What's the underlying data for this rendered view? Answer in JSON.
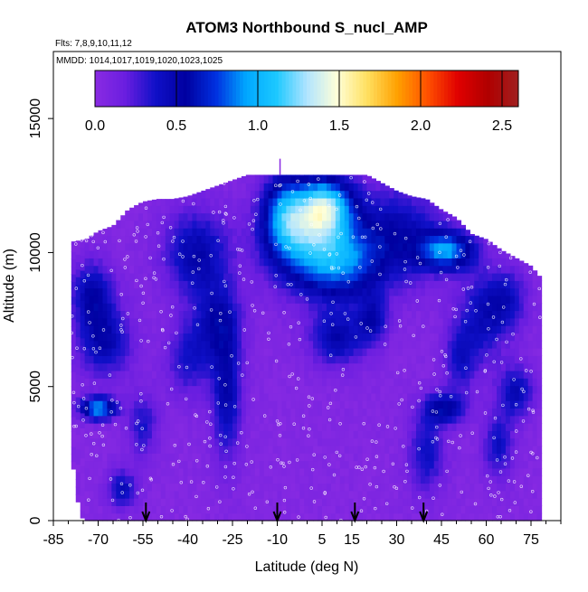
{
  "chart_data": {
    "type": "heatmap",
    "title": "ATOM3 Northbound S_nucl_AMP",
    "note_flights": "Flts: 7,8,9,10,11,12",
    "note_dates": "MMDD: 1014,1017,1019,1020,1023,1025",
    "xlabel": "Latitude (deg N)",
    "ylabel": "Altitude (m)",
    "xlim": [
      -85,
      85
    ],
    "ylim": [
      0,
      17500
    ],
    "x_ticks": [
      -85,
      -70,
      -55,
      -40,
      -25,
      -10,
      5,
      15,
      30,
      45,
      60,
      75
    ],
    "x_tick_labels": [
      "-85",
      "-70",
      "-55",
      "-40",
      "-25",
      "-10",
      "5",
      "15",
      "30",
      "45",
      "60",
      "75"
    ],
    "y_ticks": [
      0,
      5000,
      10000,
      15000
    ],
    "y_tick_labels": [
      "0",
      "5000",
      "10000",
      "15000"
    ],
    "colorbar": {
      "range": [
        0,
        2.6
      ],
      "ticks": [
        0.0,
        0.5,
        1.0,
        1.5,
        2.0,
        2.5
      ],
      "tick_labels": [
        "0.0",
        "0.5",
        "1.0",
        "1.5",
        "2.0",
        "2.5"
      ],
      "colors": [
        "#8a2be2",
        "#6a1ee0",
        "#1010c8",
        "#0000a0",
        "#0030e0",
        "#00a8ff",
        "#1cc8ff",
        "#b0e4ff",
        "#ffffd8",
        "#ffe060",
        "#ffa000",
        "#ff5000",
        "#e00000",
        "#b00000",
        "#a02020"
      ]
    },
    "arrow_latitudes": [
      -54,
      -10,
      16,
      39
    ],
    "field": {
      "background_value": 0.05,
      "profile_tops": [
        [
          -79,
          10400
        ],
        [
          -74,
          10500
        ],
        [
          -70,
          10800
        ],
        [
          -65,
          11000
        ],
        [
          -60,
          11600
        ],
        [
          -55,
          11900
        ],
        [
          -50,
          12000
        ],
        [
          -45,
          12000
        ],
        [
          -40,
          12100
        ],
        [
          -35,
          12300
        ],
        [
          -30,
          12500
        ],
        [
          -25,
          12700
        ],
        [
          -20,
          12900
        ],
        [
          -15,
          12900
        ],
        [
          -10,
          12900
        ],
        [
          -5,
          12900
        ],
        [
          0,
          12900
        ],
        [
          5,
          12900
        ],
        [
          10,
          12900
        ],
        [
          15,
          12900
        ],
        [
          20,
          12900
        ],
        [
          25,
          12600
        ],
        [
          30,
          12300
        ],
        [
          35,
          12100
        ],
        [
          40,
          12000
        ],
        [
          45,
          11600
        ],
        [
          50,
          11300
        ],
        [
          55,
          10700
        ],
        [
          60,
          10500
        ],
        [
          65,
          10100
        ],
        [
          70,
          9800
        ],
        [
          75,
          9500
        ],
        [
          78,
          9100
        ]
      ],
      "surface_bottoms": [
        [
          -79,
          2600
        ],
        [
          -77,
          800
        ],
        [
          -75,
          0
        ],
        [
          78,
          0
        ]
      ],
      "features": [
        {
          "lat": 1,
          "alt": 10600,
          "w_lat": 14,
          "w_alt": 1800,
          "value": 0.95
        },
        {
          "lat": 6,
          "alt": 11800,
          "w_lat": 9,
          "w_alt": 1000,
          "value": 0.8
        },
        {
          "lat": -8,
          "alt": 11500,
          "w_lat": 7,
          "w_alt": 1400,
          "value": 0.55
        },
        {
          "lat": 13,
          "alt": 9500,
          "w_lat": 12,
          "w_alt": 1300,
          "value": 0.5
        },
        {
          "lat": 47,
          "alt": 10100,
          "w_lat": 9,
          "w_alt": 700,
          "value": 0.8
        },
        {
          "lat": 30,
          "alt": 10600,
          "w_lat": 15,
          "w_alt": 1800,
          "value": 0.45
        },
        {
          "lat": -37,
          "alt": 10000,
          "w_lat": 11,
          "w_alt": 1600,
          "value": 0.45
        },
        {
          "lat": -30,
          "alt": 7400,
          "w_lat": 8,
          "w_alt": 1500,
          "value": 0.4
        },
        {
          "lat": -72,
          "alt": 8500,
          "w_lat": 7,
          "w_alt": 1200,
          "value": 0.45
        },
        {
          "lat": -68,
          "alt": 6700,
          "w_lat": 9,
          "w_alt": 1300,
          "value": 0.45
        },
        {
          "lat": -70,
          "alt": 4200,
          "w_lat": 6,
          "w_alt": 400,
          "value": 0.9
        },
        {
          "lat": -62,
          "alt": 1200,
          "w_lat": 5,
          "w_alt": 700,
          "value": 0.4
        },
        {
          "lat": -40,
          "alt": 6000,
          "w_lat": 7,
          "w_alt": 1400,
          "value": 0.3
        },
        {
          "lat": -27,
          "alt": 4700,
          "w_lat": 5,
          "w_alt": 2400,
          "value": 0.45
        },
        {
          "lat": 10,
          "alt": 6800,
          "w_lat": 9,
          "w_alt": 1000,
          "value": 0.45
        },
        {
          "lat": 22,
          "alt": 7500,
          "w_lat": 5,
          "w_alt": 900,
          "value": 0.4
        },
        {
          "lat": 46,
          "alt": 4200,
          "w_lat": 7,
          "w_alt": 600,
          "value": 0.5
        },
        {
          "lat": 40,
          "alt": 2500,
          "w_lat": 6,
          "w_alt": 1500,
          "value": 0.35
        },
        {
          "lat": 58,
          "alt": 7500,
          "w_lat": 8,
          "w_alt": 1800,
          "value": 0.35
        },
        {
          "lat": 67,
          "alt": 8200,
          "w_lat": 7,
          "w_alt": 1200,
          "value": 0.35
        },
        {
          "lat": 70,
          "alt": 4800,
          "w_lat": 6,
          "w_alt": 1000,
          "value": 0.4
        },
        {
          "lat": 64,
          "alt": 2800,
          "w_lat": 5,
          "w_alt": 1200,
          "value": 0.35
        },
        {
          "lat": -55,
          "alt": 3600,
          "w_lat": 5,
          "w_alt": 1200,
          "value": 0.3
        },
        {
          "lat": 51,
          "alt": 6000,
          "w_lat": 5,
          "w_alt": 1200,
          "value": 0.3
        }
      ]
    }
  }
}
